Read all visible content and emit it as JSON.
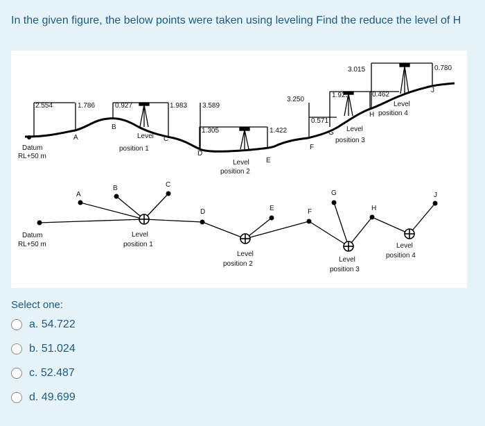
{
  "question": {
    "text": "In the given figure, the below points were taken using leveling Find the reduce the level of H"
  },
  "figure": {
    "top": {
      "readings": [
        "2.554",
        "1.786",
        "0.927",
        "1.983",
        "3.589",
        "1.305",
        "1.422",
        "3.250",
        "0.571",
        "1.925",
        "3.015",
        "0.462",
        "0.780"
      ],
      "points": [
        "A",
        "B",
        "C",
        "D",
        "E",
        "F",
        "G",
        "H",
        "J"
      ],
      "datum_line1": "Datum",
      "datum_line2": "RL+50 m",
      "level_word": "Level",
      "positions": [
        "position 1",
        "position 2",
        "position 3",
        "position 4"
      ]
    },
    "bottom": {
      "points": [
        "A",
        "B",
        "C",
        "D",
        "E",
        "F",
        "G",
        "H",
        "J"
      ],
      "datum_line1": "Datum",
      "datum_line2": "RL+50 m",
      "level_word": "Level",
      "positions": [
        "position 1",
        "position 2",
        "position 3",
        "position 4"
      ]
    }
  },
  "answer": {
    "prompt": "Select one:",
    "options": [
      "a. 54.722",
      "b. 51.024",
      "c. 52.487",
      "d. 49.699"
    ]
  }
}
